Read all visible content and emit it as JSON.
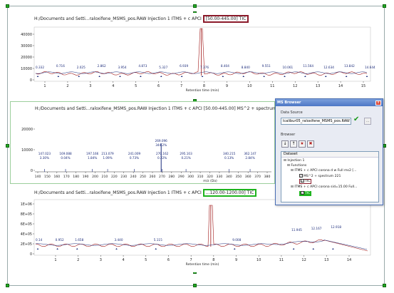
{
  "colors": {
    "trace_blue": "#1a2a7a",
    "trace_red": "#a01818",
    "highlight_red": "#8b1a2a",
    "highlight_green": "#1db31d",
    "check_green": "#1a9a1a"
  },
  "pane1": {
    "title_prefix": "H:/Documents and Setti...raloxifene_MSMS_pos.RAW Injection 1 ITMS + c APCI",
    "title_range": "[50.00-445.00] TIC",
    "x_axis_label": "Retention time (min)",
    "y_ticks": [
      "40000",
      "30000",
      "20000",
      "10000",
      "0"
    ],
    "x_ticks": [
      "1",
      "2",
      "3",
      "4",
      "5",
      "6",
      "7",
      "8",
      "9",
      "10",
      "11",
      "12",
      "13",
      "14",
      "15"
    ],
    "peak_labels": [
      "0.332",
      "0.716",
      "2.025",
      "2.862",
      "3.954",
      "4.873",
      "5.327",
      "6.939",
      "7.376",
      "8.404",
      "8.840",
      "9.551",
      "10.061",
      "11.564",
      "12.634",
      "13.842",
      "14.644"
    ]
  },
  "pane2": {
    "title_prefix": "H:/Documents and Setti...raloxifene_MSMS_pos.RAW Injection 1 ITMS + c APCI",
    "title_range": "[50.00-445.00] MS^2 + spectrum 221",
    "x_axis_label": "m/z (Da)",
    "y_ticks": [
      "20000",
      "10000",
      "0"
    ],
    "x_ticks": [
      "140",
      "150",
      "160",
      "170",
      "180",
      "190",
      "200",
      "210",
      "220",
      "230",
      "240",
      "250",
      "260",
      "270",
      "280",
      "290",
      "300",
      "310",
      "320",
      "330",
      "340",
      "350",
      "360",
      "370",
      "380"
    ],
    "peak_labels": [
      {
        "mz": "147.023",
        "pct": "3.30%"
      },
      {
        "mz": "169.088",
        "pct": "0.04%"
      },
      {
        "mz": "197.166",
        "pct": "1.84%"
      },
      {
        "mz": "213.079",
        "pct": "1.09%"
      },
      {
        "mz": "241.009",
        "pct": "0.73%"
      },
      {
        "mz": "269.096",
        "pct": "344.2%"
      },
      {
        "mz": "270.162",
        "pct": "0.22%"
      },
      {
        "mz": "295.103",
        "pct": "0.21%"
      },
      {
        "mz": "340.215",
        "pct": "0.13%"
      },
      {
        "mz": "362.147",
        "pct": "2.84%"
      }
    ]
  },
  "pane3": {
    "title_prefix": "H:/Documents and Setti...raloxifene_MSMS_pos.RAW Injection 1 ITMS + c APCI",
    "title_range": "...120.00-1200.00] TIC",
    "x_axis_label": "Retention time (min)",
    "y_ticks": [
      "1E+06",
      "8E+05",
      "6E+05",
      "4E+05",
      "2E+05",
      "0"
    ],
    "x_ticks": [
      "1",
      "2",
      "3",
      "4",
      "5",
      "6",
      "7",
      "8",
      "9",
      "10",
      "11",
      "12",
      "13",
      "14"
    ],
    "peak_labels": [
      "0.14",
      "0.952",
      "1.658",
      "3.440",
      "5.115",
      "9.008",
      "11.945",
      "12.167",
      "12.918"
    ]
  },
  "ms_browser": {
    "title": "MS Browser",
    "close_label": "x",
    "data_source_label": "Data Source",
    "data_source_value": "lcalibur05_raloxifene_MSMS_pos.RAW",
    "ok_icon": "checkmark-icon",
    "browse_button_label": "...",
    "browser_label": "Browser",
    "tree_header": "Dataset",
    "tree": {
      "root": "Injection 1",
      "functions": "Functions",
      "fn1": "ITMS + c APCI corona d w Full ms2 [...",
      "fn1_child1": "MS^2 + spectrum 221",
      "fn1_child2": "TIC",
      "fn2": "ITMS + c APCI corona sid=15.00 Full...",
      "fn2_child1": "TIC"
    }
  }
}
